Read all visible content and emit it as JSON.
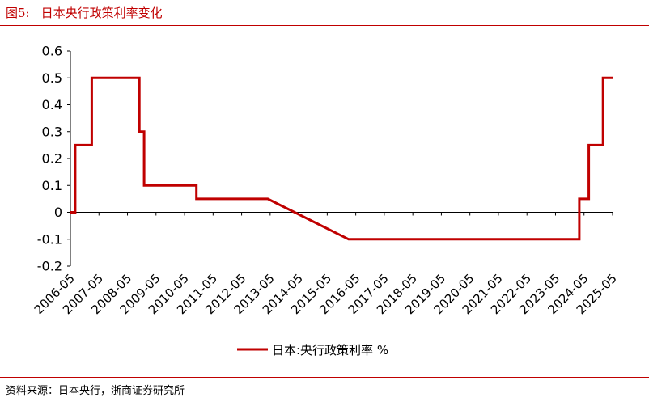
{
  "header": {
    "figure_label": "图5:",
    "title": "日本央行政策利率变化"
  },
  "footer": {
    "source": "资料来源：日本央行，浙商证券研究所"
  },
  "colors": {
    "accent": "#c00000",
    "series": "#c00000",
    "axis": "#000000"
  },
  "chart_data": {
    "type": "line",
    "title": "日本央行政策利率变化",
    "xlabel": "",
    "ylabel": "",
    "ylim": [
      -0.2,
      0.6
    ],
    "yticks": [
      -0.2,
      -0.1,
      0,
      0.1,
      0.2,
      0.3,
      0.4,
      0.5,
      0.6
    ],
    "ytick_labels": [
      "-0.2",
      "-0.1",
      "0",
      "0.1",
      "0.2",
      "0.3",
      "0.4",
      "0.5",
      "0.6"
    ],
    "xlim": [
      "2006-05",
      "2025-05"
    ],
    "x_tick_labels": [
      "2006-05",
      "2007-05",
      "2008-05",
      "2009-05",
      "2010-05",
      "2011-05",
      "2012-05",
      "2013-05",
      "2014-05",
      "2015-05",
      "2016-05",
      "2017-05",
      "2018-05",
      "2019-05",
      "2020-05",
      "2021-05",
      "2022-05",
      "2023-05",
      "2024-05",
      "2025-05"
    ],
    "grid": false,
    "legend_position": "bottom-center",
    "series": [
      {
        "name": "日本:央行政策利率 %",
        "x": [
          "2006-05",
          "2006-07",
          "2006-07",
          "2007-02",
          "2007-02",
          "2008-10",
          "2008-10",
          "2008-12",
          "2008-12",
          "2010-10",
          "2010-10",
          "2013-04",
          "2016-02",
          "2024-03",
          "2024-03",
          "2024-07",
          "2024-07",
          "2025-01",
          "2025-01",
          "2025-05"
        ],
        "values": [
          0,
          0,
          0.25,
          0.25,
          0.5,
          0.5,
          0.3,
          0.3,
          0.1,
          0.1,
          0.05,
          0.05,
          -0.1,
          -0.1,
          0.05,
          0.05,
          0.25,
          0.25,
          0.5,
          0.5
        ]
      }
    ]
  }
}
